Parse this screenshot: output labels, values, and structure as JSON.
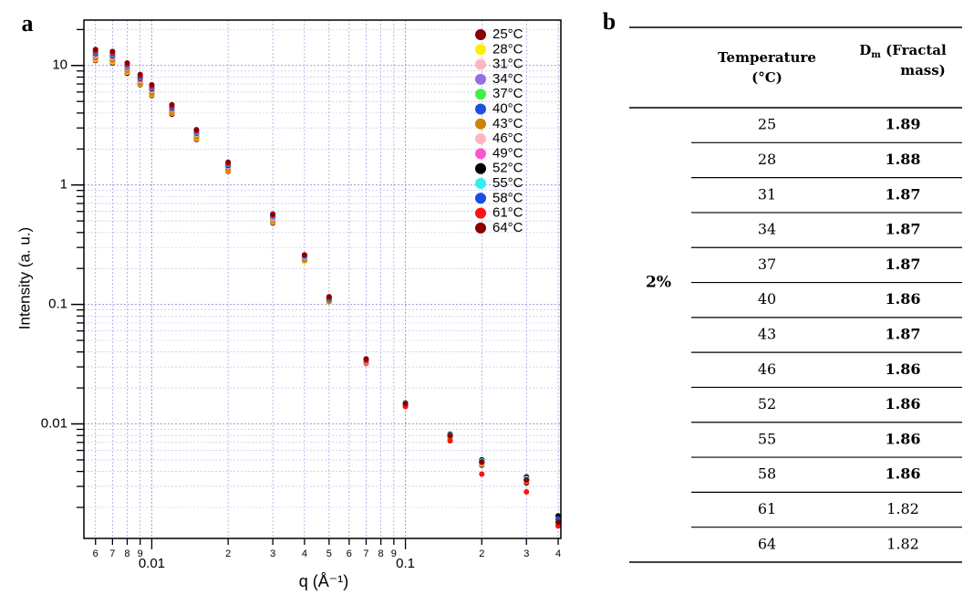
{
  "panel_labels": [
    "a",
    "b"
  ],
  "chart_data": {
    "type": "scatter",
    "xlabel": "q (Å⁻¹)",
    "ylabel": "Intensity (a. u.)",
    "xscale": "log",
    "yscale": "log",
    "grid": true,
    "legend": "top-right",
    "xlim": [
      0.0054,
      0.41
    ],
    "ylim": [
      0.0011,
      24
    ],
    "xticks": [
      {
        "value": 0.006,
        "label": "6"
      },
      {
        "value": 0.007,
        "label": "7"
      },
      {
        "value": 0.008,
        "label": "8"
      },
      {
        "value": 0.009,
        "label": "9"
      },
      0.01,
      {
        "value": 0.02,
        "label": "2"
      },
      {
        "value": 0.03,
        "label": "3"
      },
      {
        "value": 0.04,
        "label": "4"
      },
      {
        "value": 0.05,
        "label": "5"
      },
      {
        "value": 0.06,
        "label": "6"
      },
      {
        "value": 0.07,
        "label": "7"
      },
      {
        "value": 0.08,
        "label": "8"
      },
      {
        "value": 0.09,
        "label": "9"
      },
      0.1,
      {
        "value": 0.2,
        "label": "2"
      },
      {
        "value": 0.3,
        "label": "3"
      },
      {
        "value": 0.4,
        "label": "4"
      }
    ],
    "yticks": [
      0.01,
      0.1,
      1,
      10
    ],
    "yminorticks": [
      0.002,
      0.003,
      0.004,
      0.005,
      0.006,
      0.007,
      0.008,
      0.009,
      0.02,
      0.03,
      0.04,
      0.05,
      0.06,
      0.07,
      0.08,
      0.09,
      0.2,
      0.3,
      0.4,
      0.5,
      0.6,
      0.7,
      0.8,
      0.9,
      2,
      3,
      4,
      5,
      6,
      7,
      8,
      9,
      20
    ],
    "x": [
      0.006,
      0.007,
      0.008,
      0.009,
      0.01,
      0.012,
      0.015,
      0.02,
      0.03,
      0.04,
      0.05,
      0.07,
      0.1,
      0.15,
      0.2,
      0.3,
      0.4
    ],
    "series": [
      {
        "name": "25°C",
        "color": "#8b0000",
        "values": [
          11,
          10.5,
          8.6,
          6.9,
          5.6,
          3.9,
          2.4,
          1.3,
          0.48,
          0.23,
          0.105,
          0.032,
          0.014,
          0.0075,
          0.0045,
          0.0032,
          0.0014
        ]
      },
      {
        "name": "28°C",
        "color": "#ffee00",
        "values": [
          11.2,
          10.7,
          8.8,
          7,
          5.7,
          4,
          2.45,
          1.32,
          0.49,
          0.23,
          0.105,
          0.032,
          0.0142,
          0.0076,
          0.0046,
          0.0033,
          0.0014
        ]
      },
      {
        "name": "31°C",
        "color": "#ffb6c1",
        "values": [
          11.4,
          10.9,
          8.9,
          7.1,
          5.8,
          4.05,
          2.5,
          1.34,
          0.5,
          0.235,
          0.106,
          0.032,
          0.0143,
          0.0077,
          0.0046,
          0.0033,
          0.0015
        ]
      },
      {
        "name": "34°C",
        "color": "#9370db",
        "values": [
          11.6,
          11.1,
          9.1,
          7.2,
          5.9,
          4.1,
          2.55,
          1.36,
          0.5,
          0.235,
          0.107,
          0.032,
          0.0144,
          0.0078,
          0.0047,
          0.0034,
          0.0015
        ]
      },
      {
        "name": "37°C",
        "color": "#44ee44",
        "values": [
          11.8,
          11.3,
          9.2,
          7.3,
          6,
          4.15,
          2.6,
          1.38,
          0.51,
          0.24,
          0.108,
          0.033,
          0.0145,
          0.0078,
          0.0047,
          0.0034,
          0.0015
        ]
      },
      {
        "name": "40°C",
        "color": "#1f4fe0",
        "values": [
          12,
          11.5,
          9.4,
          7.4,
          6.1,
          4.2,
          2.62,
          1.4,
          0.52,
          0.24,
          0.109,
          0.033,
          0.0146,
          0.0079,
          0.0048,
          0.0034,
          0.0016
        ]
      },
      {
        "name": "43°C",
        "color": "#cc8400",
        "values": [
          11.5,
          11,
          9,
          7.1,
          5.8,
          4.05,
          2.5,
          1.34,
          0.5,
          0.235,
          0.106,
          0.032,
          0.0144,
          0.0077,
          0.0047,
          0.0033,
          0.0015
        ]
      },
      {
        "name": "46°C",
        "color": "#ffb6c1",
        "values": [
          12.2,
          11.7,
          9.5,
          7.5,
          6.2,
          4.3,
          2.65,
          1.42,
          0.52,
          0.245,
          0.11,
          0.033,
          0.0147,
          0.008,
          0.0048,
          0.0035,
          0.0016
        ]
      },
      {
        "name": "49°C",
        "color": "#ff55cc",
        "values": [
          12.4,
          11.9,
          9.6,
          7.6,
          6.3,
          4.35,
          2.7,
          1.44,
          0.53,
          0.245,
          0.11,
          0.033,
          0.0148,
          0.008,
          0.0049,
          0.0035,
          0.0016
        ]
      },
      {
        "name": "52°C",
        "color": "#000000",
        "values": [
          12.6,
          12.1,
          9.8,
          7.8,
          6.4,
          4.4,
          2.72,
          1.46,
          0.54,
          0.25,
          0.111,
          0.034,
          0.015,
          0.0082,
          0.005,
          0.0036,
          0.0017
        ]
      },
      {
        "name": "55°C",
        "color": "#33eeee",
        "values": [
          12.8,
          12.3,
          9.9,
          7.9,
          6.5,
          4.45,
          2.75,
          1.48,
          0.54,
          0.25,
          0.112,
          0.034,
          0.0149,
          0.0081,
          0.0049,
          0.0035,
          0.0016
        ]
      },
      {
        "name": "58°C",
        "color": "#1a4de8",
        "values": [
          13,
          12.5,
          10.1,
          8,
          6.6,
          4.5,
          2.8,
          1.5,
          0.55,
          0.255,
          0.113,
          0.034,
          0.0148,
          0.008,
          0.0048,
          0.0034,
          0.0016
        ]
      },
      {
        "name": "61°C",
        "color": "#ff1111",
        "values": [
          13.3,
          12.8,
          10.3,
          8.2,
          6.7,
          4.6,
          2.85,
          1.52,
          0.56,
          0.258,
          0.115,
          0.034,
          0.014,
          0.0072,
          0.0038,
          0.0027,
          0.0014
        ]
      },
      {
        "name": "64°C",
        "color": "#8b0000",
        "values": [
          13.6,
          13.1,
          10.5,
          8.4,
          6.9,
          4.7,
          2.9,
          1.55,
          0.57,
          0.26,
          0.116,
          0.035,
          0.0148,
          0.008,
          0.0048,
          0.0034,
          0.0015
        ]
      }
    ]
  },
  "table": {
    "header": {
      "temperature": "Temperature (°C)",
      "dm_symbol": "D",
      "dm_subscript": "m",
      "dm_text": "(Fractal mass)"
    },
    "group": "2%",
    "rows": [
      {
        "temperature": "25",
        "dm": "1.89",
        "bold": true
      },
      {
        "temperature": "28",
        "dm": "1.88",
        "bold": true
      },
      {
        "temperature": "31",
        "dm": "1.87",
        "bold": true
      },
      {
        "temperature": "34",
        "dm": "1.87",
        "bold": true
      },
      {
        "temperature": "37",
        "dm": "1.87",
        "bold": true
      },
      {
        "temperature": "40",
        "dm": "1.86",
        "bold": true
      },
      {
        "temperature": "43",
        "dm": "1.87",
        "bold": true
      },
      {
        "temperature": "46",
        "dm": "1.86",
        "bold": true
      },
      {
        "temperature": "52",
        "dm": "1.86",
        "bold": true
      },
      {
        "temperature": "55",
        "dm": "1.86",
        "bold": true
      },
      {
        "temperature": "58",
        "dm": "1.86",
        "bold": true
      },
      {
        "temperature": "61",
        "dm": "1.82",
        "bold": false
      },
      {
        "temperature": "64",
        "dm": "1.82",
        "bold": false
      }
    ]
  }
}
